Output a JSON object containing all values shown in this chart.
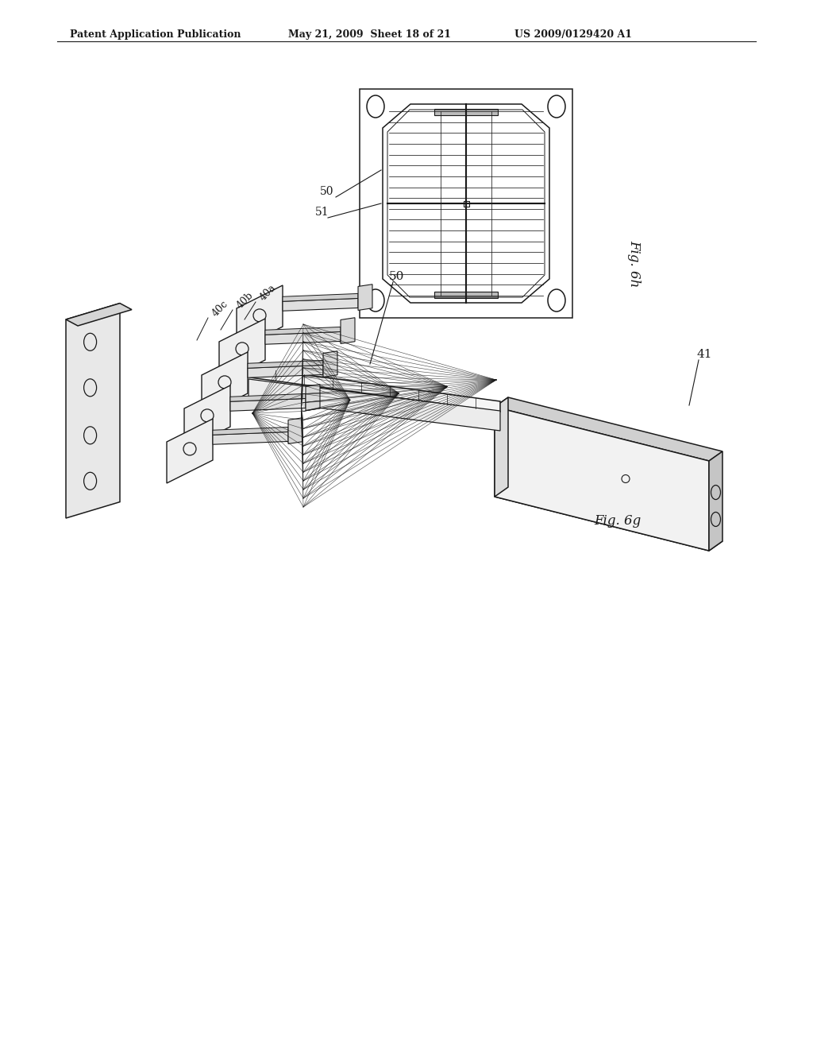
{
  "header_left": "Patent Application Publication",
  "header_middle": "May 21, 2009  Sheet 18 of 21",
  "header_right": "US 2009/0129420 A1",
  "fig6h_label": "Fig. 6h",
  "fig6g_label": "Fig. 6g",
  "label_50_top": "50",
  "label_51": "51",
  "label_50_bot": "50",
  "label_41": "41",
  "label_40a": "40a",
  "label_40b": "40b",
  "label_40c": "40c",
  "bg_color": "#ffffff",
  "line_color": "#1a1a1a"
}
